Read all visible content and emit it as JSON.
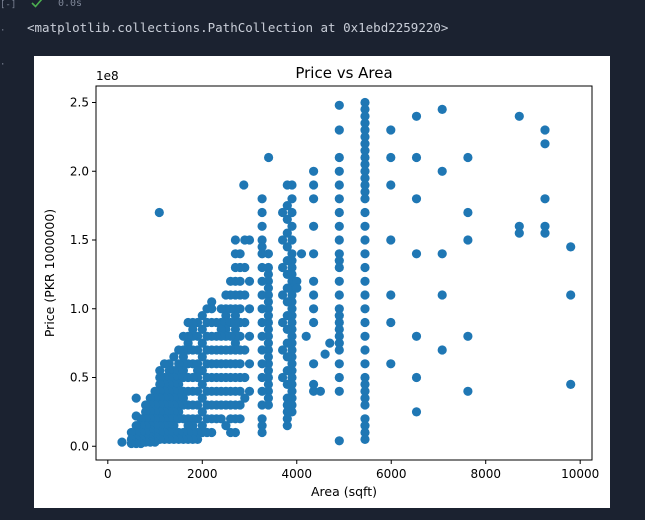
{
  "cell": {
    "gutter_top": "[-]",
    "exec_time": "0.0s",
    "output_text": "<matplotlib.collections.PathCollection at 0x1ebd2259220>"
  },
  "icons": {
    "status": "check-icon"
  },
  "colors": {
    "background": "#1b2230",
    "point": "#1f77b4",
    "success": "#4caf50"
  },
  "chart_data": {
    "type": "scatter",
    "title": "Price vs Area",
    "xlabel": "Area (sqft)",
    "ylabel": "Price (PKR 1000000)",
    "offset_label": "1e8",
    "xlim": [
      -250,
      10250
    ],
    "ylim": [
      -0.1,
      2.62
    ],
    "xticks": [
      0,
      2000,
      4000,
      6000,
      8000,
      10000
    ],
    "yticks": [
      0.0,
      0.5,
      1.0,
      1.5,
      2.0,
      2.5
    ],
    "xtick_labels": [
      "0",
      "2000",
      "4000",
      "6000",
      "8000",
      "10000"
    ],
    "ytick_labels": [
      "0.0",
      "0.5",
      "1.0",
      "1.5",
      "2.0",
      "2.5"
    ],
    "grid": false,
    "series": [
      {
        "color": "#1f77b4",
        "x": [
          1089,
          2878,
          3403,
          4900,
          9800,
          9800,
          9800,
          8712,
          8712,
          8712,
          9256,
          9256,
          9256,
          9256,
          9256,
          7623,
          7623,
          7623,
          7623,
          7623,
          7078,
          7078,
          7078,
          7078,
          7078,
          6534,
          6534,
          6534,
          6534,
          6534,
          6534,
          6534,
          5990,
          5990,
          5990,
          5990,
          5990,
          5990,
          5990,
          5445,
          5445,
          5445,
          5445,
          5445,
          5445,
          5445,
          5445,
          5445,
          5445,
          5445,
          5445,
          5445,
          5445,
          5445,
          5445,
          5445,
          5445,
          5445,
          5445,
          5445,
          5445,
          5445,
          5445,
          5445,
          5445,
          5445,
          5445,
          5445,
          5445,
          5445,
          5445,
          5445,
          5445,
          5445,
          5445,
          4900,
          4900,
          4900,
          4900,
          4900,
          4900,
          4900,
          4900,
          4900,
          4900,
          4900,
          4900,
          4900,
          4900,
          4900,
          4900,
          4900,
          4900,
          4900,
          4900,
          4900,
          4900,
          4900,
          4900,
          4356,
          4356,
          4356,
          4356,
          4356,
          4356,
          4356,
          4356,
          4356,
          4356,
          4356,
          4356,
          3900,
          3900,
          3900,
          3900,
          3900,
          3900,
          3900,
          3900,
          3900,
          3900,
          3900,
          3900,
          3900,
          3900,
          3900,
          3900,
          3900,
          3900,
          3900,
          3900,
          3900,
          3900,
          3900,
          3900,
          3900,
          3900,
          3900,
          3900,
          3900,
          3800,
          3800,
          3800,
          3800,
          3800,
          3800,
          3800,
          3800,
          3800,
          3800,
          3800,
          3800,
          3800,
          3800,
          3800,
          3800,
          3800,
          3800,
          3800,
          3800,
          3700,
          3700,
          3700,
          3700,
          3700,
          3700,
          3700,
          3400,
          3400,
          3400,
          3400,
          3400,
          3400,
          3400,
          3400,
          3400,
          3400,
          3400,
          3400,
          3400,
          3400,
          3400,
          3400,
          3400,
          3400,
          3400,
          3400,
          3400,
          3400,
          3267,
          3267,
          3267,
          3267,
          3267,
          3267,
          3267,
          3267,
          3267,
          3267,
          3267,
          3267,
          3267,
          3267,
          3267,
          3267,
          3267,
          3267,
          3267,
          3267,
          3000,
          3000,
          3000,
          3000,
          3000,
          3000,
          2900,
          2900,
          2900,
          2900,
          2900,
          2900,
          2900,
          2800,
          2800,
          2800,
          2800,
          2800,
          2800,
          2800,
          2800,
          2800,
          2800,
          2800,
          2800,
          2800,
          2700,
          2700,
          2700,
          2700,
          2700,
          2700,
          2700,
          2700,
          2700,
          2700,
          2700,
          2700,
          2700,
          2700,
          2700,
          2700,
          2700,
          2700,
          2600,
          2600,
          2600,
          2600,
          2600,
          2600,
          2600,
          2600,
          2600,
          2600,
          2600,
          2600,
          2500,
          2500,
          2500,
          2500,
          2500,
          2500,
          2500,
          2500,
          2500,
          2500,
          2500,
          2500,
          2400,
          2400,
          2400,
          2400,
          2400,
          2400,
          2400,
          2400,
          2400,
          2400,
          2300,
          2300,
          2300,
          2300,
          2300,
          2300,
          2300,
          2300,
          2200,
          2200,
          2200,
          2200,
          2200,
          2200,
          2200,
          2200,
          2200,
          2200,
          2200,
          2100,
          2100,
          2100,
          2100,
          2100,
          2100,
          2100,
          2100,
          2100,
          2100,
          2000,
          2000,
          2000,
          2000,
          2000,
          2000,
          2000,
          2000,
          2000,
          2000,
          1900,
          1900,
          1900,
          1900,
          1900,
          1900,
          1900,
          1900,
          1900,
          1900,
          1900,
          1800,
          1800,
          1800,
          1800,
          1800,
          1800,
          1800,
          1800,
          1800,
          1800,
          1800,
          1800,
          1700,
          1700,
          1700,
          1700,
          1700,
          1700,
          1700,
          1700,
          1700,
          1700,
          1700,
          1700,
          1600,
          1600,
          1600,
          1600,
          1600,
          1600,
          1600,
          1600,
          1600,
          1600,
          1600,
          1600,
          1500,
          1500,
          1500,
          1500,
          1500,
          1500,
          1500,
          1500,
          1500,
          1500,
          1500,
          1500,
          1400,
          1400,
          1400,
          1400,
          1400,
          1400,
          1400,
          1400,
          1400,
          1400,
          1400,
          1400,
          1300,
          1300,
          1300,
          1300,
          1300,
          1300,
          1300,
          1300,
          1300,
          1300,
          1300,
          1300,
          1200,
          1200,
          1200,
          1200,
          1200,
          1200,
          1200,
          1200,
          1200,
          1200,
          1200,
          1100,
          1100,
          1100,
          1100,
          1100,
          1100,
          1100,
          1100,
          1100,
          1100,
          1100,
          1000,
          1000,
          1000,
          1000,
          1000,
          1000,
          1000,
          1000,
          1000,
          1000,
          900,
          900,
          900,
          900,
          900,
          900,
          900,
          900,
          900,
          900,
          800,
          800,
          800,
          800,
          800,
          800,
          800,
          700,
          700,
          700,
          700,
          700,
          600,
          600,
          600,
          600,
          600,
          600,
          500,
          500,
          500,
          300,
          4700,
          4600,
          4500,
          4200,
          4100,
          4000,
          4000
        ],
        "y": [
          1.7,
          1.9,
          2.1,
          0.04,
          1.45,
          1.1,
          0.45,
          2.4,
          1.6,
          1.55,
          2.3,
          2.2,
          1.8,
          1.6,
          1.55,
          2.1,
          1.7,
          1.5,
          0.8,
          0.4,
          2.45,
          2.0,
          1.4,
          1.1,
          0.7,
          2.4,
          2.1,
          1.8,
          1.4,
          0.8,
          0.5,
          0.25,
          2.3,
          2.1,
          1.9,
          1.5,
          1.1,
          0.9,
          0.6,
          2.5,
          2.45,
          2.4,
          2.35,
          2.3,
          2.25,
          2.2,
          2.15,
          2.1,
          2.05,
          2.0,
          1.95,
          1.9,
          1.85,
          1.8,
          1.7,
          1.6,
          1.5,
          1.4,
          1.3,
          1.2,
          1.1,
          1.0,
          0.9,
          0.8,
          0.7,
          0.6,
          0.5,
          0.45,
          0.4,
          0.35,
          0.3,
          0.2,
          0.15,
          0.1,
          0.05,
          2.48,
          2.3,
          2.1,
          2.0,
          1.9,
          1.8,
          1.7,
          1.6,
          1.5,
          1.4,
          1.35,
          1.3,
          1.2,
          1.1,
          1.0,
          0.95,
          0.9,
          0.85,
          0.8,
          0.75,
          0.7,
          0.6,
          0.5,
          0.4,
          2.0,
          1.9,
          1.8,
          1.6,
          1.4,
          1.2,
          1.1,
          1.0,
          0.9,
          0.6,
          0.45,
          0.4,
          1.9,
          1.8,
          1.7,
          1.6,
          1.5,
          1.4,
          1.35,
          1.3,
          1.25,
          1.2,
          1.15,
          1.1,
          1.05,
          1.0,
          0.95,
          0.9,
          0.85,
          0.8,
          0.75,
          0.7,
          0.65,
          0.6,
          0.55,
          0.5,
          0.45,
          0.4,
          0.35,
          0.3,
          0.25,
          1.9,
          1.75,
          1.65,
          1.55,
          1.45,
          1.35,
          1.25,
          1.15,
          1.05,
          0.95,
          0.85,
          0.75,
          0.65,
          0.55,
          0.45,
          0.35,
          0.3,
          0.25,
          0.2,
          0.15,
          1.7,
          1.5,
          1.3,
          1.1,
          0.9,
          0.7,
          0.5,
          1.4,
          1.3,
          1.25,
          1.2,
          1.15,
          1.1,
          1.05,
          1.0,
          0.95,
          0.9,
          0.85,
          0.8,
          0.75,
          0.7,
          0.65,
          0.6,
          0.55,
          0.5,
          0.45,
          0.4,
          0.35,
          0.3,
          1.8,
          1.7,
          1.6,
          1.5,
          1.45,
          1.4,
          1.3,
          1.2,
          1.1,
          1.0,
          0.9,
          0.8,
          0.7,
          0.6,
          0.5,
          0.4,
          0.3,
          0.2,
          0.15,
          0.1,
          1.5,
          1.2,
          1.0,
          0.8,
          0.6,
          0.4,
          1.5,
          1.3,
          1.1,
          0.9,
          0.7,
          0.5,
          0.35,
          1.4,
          1.3,
          1.2,
          1.1,
          1.0,
          0.9,
          0.8,
          0.7,
          0.6,
          0.5,
          0.4,
          0.3,
          0.2,
          1.5,
          1.4,
          1.3,
          1.2,
          1.1,
          1.0,
          0.95,
          0.9,
          0.85,
          0.8,
          0.75,
          0.7,
          0.6,
          0.5,
          0.4,
          0.3,
          0.2,
          0.1,
          1.2,
          1.1,
          1.0,
          0.9,
          0.8,
          0.7,
          0.6,
          0.5,
          0.4,
          0.3,
          0.2,
          0.1,
          1.1,
          1.0,
          0.95,
          0.9,
          0.85,
          0.8,
          0.7,
          0.6,
          0.5,
          0.4,
          0.3,
          0.15,
          1.0,
          0.9,
          0.85,
          0.8,
          0.7,
          0.6,
          0.5,
          0.4,
          0.3,
          0.2,
          0.9,
          0.8,
          0.7,
          0.6,
          0.5,
          0.4,
          0.3,
          0.2,
          1.05,
          1.0,
          0.9,
          0.8,
          0.7,
          0.6,
          0.5,
          0.4,
          0.3,
          0.2,
          0.1,
          1.0,
          0.9,
          0.8,
          0.7,
          0.6,
          0.5,
          0.4,
          0.3,
          0.2,
          0.1,
          0.95,
          0.85,
          0.75,
          0.65,
          0.55,
          0.45,
          0.35,
          0.25,
          0.15,
          0.1,
          0.9,
          0.8,
          0.7,
          0.6,
          0.55,
          0.5,
          0.4,
          0.3,
          0.2,
          0.1,
          0.05,
          0.9,
          0.85,
          0.8,
          0.7,
          0.6,
          0.5,
          0.4,
          0.3,
          0.2,
          0.15,
          0.1,
          0.05,
          0.9,
          0.8,
          0.75,
          0.7,
          0.6,
          0.5,
          0.4,
          0.3,
          0.2,
          0.15,
          0.1,
          0.05,
          0.8,
          0.7,
          0.65,
          0.6,
          0.55,
          0.5,
          0.4,
          0.35,
          0.3,
          0.2,
          0.1,
          0.05,
          0.7,
          0.6,
          0.55,
          0.5,
          0.45,
          0.4,
          0.35,
          0.3,
          0.25,
          0.2,
          0.1,
          0.05,
          0.65,
          0.55,
          0.5,
          0.45,
          0.4,
          0.35,
          0.3,
          0.25,
          0.2,
          0.15,
          0.1,
          0.05,
          0.6,
          0.55,
          0.5,
          0.45,
          0.4,
          0.35,
          0.3,
          0.25,
          0.2,
          0.15,
          0.1,
          0.05,
          0.6,
          0.5,
          0.45,
          0.4,
          0.35,
          0.3,
          0.25,
          0.2,
          0.15,
          0.1,
          0.05,
          0.55,
          0.5,
          0.45,
          0.4,
          0.35,
          0.3,
          0.25,
          0.2,
          0.15,
          0.1,
          0.05,
          0.4,
          0.35,
          0.3,
          0.25,
          0.2,
          0.15,
          0.1,
          0.07,
          0.05,
          0.03,
          0.35,
          0.3,
          0.25,
          0.2,
          0.15,
          0.12,
          0.1,
          0.07,
          0.05,
          0.03,
          0.3,
          0.25,
          0.2,
          0.15,
          0.1,
          0.05,
          0.03,
          0.2,
          0.15,
          0.1,
          0.05,
          0.02,
          0.35,
          0.22,
          0.15,
          0.1,
          0.05,
          0.02,
          0.1,
          0.05,
          0.02,
          0.03,
          0.75,
          0.67,
          0.4,
          0.8,
          1.4,
          1.2,
          1.15
        ]
      }
    ]
  }
}
